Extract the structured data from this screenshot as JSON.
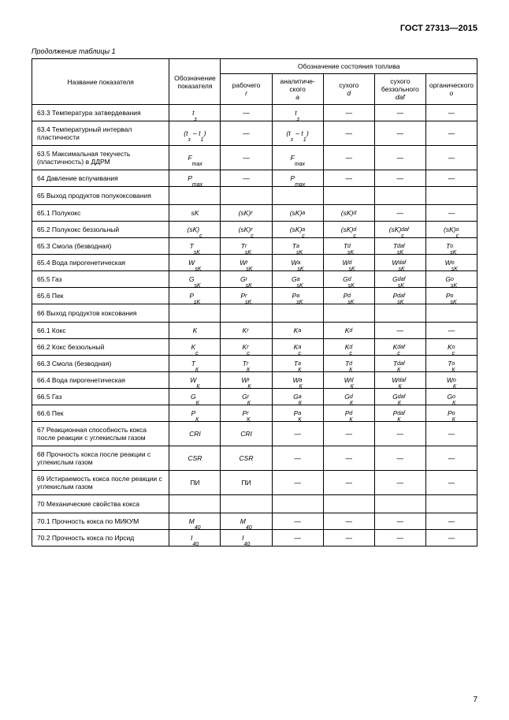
{
  "doc_title": "ГОСТ 27313—2015",
  "table_caption": "Продолжение таблицы 1",
  "page_number": "7",
  "header": {
    "col_name": "Название показателя",
    "col_symbol": "Обозначение показателя",
    "col_state_group": "Обозначение состояния топлива",
    "states": [
      {
        "label": "рабочего",
        "sub": "r"
      },
      {
        "label": "аналитиче-ского",
        "sub": "a"
      },
      {
        "label": "сухого",
        "sub": "d"
      },
      {
        "label": "сухого беззольного",
        "sub": "daf"
      },
      {
        "label": "органического",
        "sub": "o"
      }
    ]
  },
  "rows": [
    {
      "n": "63.3 Температура затвердевания",
      "s": {
        "base": "t",
        "sub": "з"
      },
      "v": [
        "—",
        {
          "base": "t",
          "sub": "з"
        },
        "—",
        "—",
        "—"
      ]
    },
    {
      "n": "63.4 Температурный интервал пластичности",
      "s": {
        "paren": true,
        "l": {
          "base": "t",
          "sub": "з"
        },
        "r": {
          "base": "t",
          "sub": "1"
        }
      },
      "v": [
        "—",
        {
          "paren": true,
          "l": {
            "base": "t",
            "sub": "з"
          },
          "r": {
            "base": "t",
            "sub": "1"
          }
        },
        "—",
        "—",
        "—"
      ]
    },
    {
      "n": "63.5 Максимальная текучесть (пластичность) в ДДРМ",
      "s": {
        "base": "F",
        "sub": "max"
      },
      "v": [
        "—",
        {
          "base": "F",
          "sub": "max"
        },
        "—",
        "—",
        "—"
      ]
    },
    {
      "n": "64 Давление вспучивания",
      "s": {
        "base": "P",
        "sub": "max"
      },
      "v": [
        "—",
        {
          "base": "P",
          "sub": "max"
        },
        "—",
        "—",
        "—"
      ]
    },
    {
      "n": "65 Выход продуктов полукоксования",
      "section": true
    },
    {
      "n": "65.1 Полукокс",
      "s": {
        "base": "sK"
      },
      "v": [
        {
          "base": "(sK)",
          "sup": "r"
        },
        {
          "base": "(sK)",
          "sup": "a"
        },
        {
          "base": "(sK)",
          "sup": "d"
        },
        "—",
        "—"
      ]
    },
    {
      "n": "65.2 Полукокс беззольный",
      "s": {
        "base": "(sK)",
        "sub": "с"
      },
      "v": [
        {
          "base": "(sK)",
          "sub": "с",
          "sup": "r"
        },
        {
          "base": "(sK)",
          "sub": "с",
          "sup": "a"
        },
        {
          "base": "(sK)",
          "sub": "с",
          "sup": "d"
        },
        {
          "base": "(sK)",
          "sub": "с",
          "sup": "daf"
        },
        {
          "base": "(sK)",
          "sub": "с",
          "sup": "o"
        }
      ]
    },
    {
      "n": "65.3 Смола (безводная)",
      "s": {
        "base": "T",
        "sub": "sK"
      },
      "v": [
        {
          "base": "T",
          "sub": "sK",
          "sup": "r"
        },
        {
          "base": "T",
          "sub": "sK",
          "sup": "a"
        },
        {
          "base": "T",
          "sub": "sK",
          "sup": "d"
        },
        {
          "base": "T",
          "sub": "sK",
          "sup": "daf"
        },
        {
          "base": "T",
          "sub": "sK",
          "sup": "o"
        }
      ]
    },
    {
      "n": "65.4 Вода пирогенетическая",
      "s": {
        "base": "W",
        "sub": "sK"
      },
      "v": [
        {
          "base": "W",
          "sub": "sK",
          "sup": "r"
        },
        {
          "base": "W",
          "sub": "sK",
          "sup": "a"
        },
        {
          "base": "W",
          "sub": "sK",
          "sup": "d"
        },
        {
          "base": "W",
          "sub": "sK",
          "sup": "daf"
        },
        {
          "base": "W",
          "sub": "sK",
          "sup": "o"
        }
      ]
    },
    {
      "n": "65.5 Газ",
      "s": {
        "base": "G",
        "sub": "sK"
      },
      "v": [
        {
          "base": "G",
          "sub": "sK",
          "sup": "r"
        },
        {
          "base": "G",
          "sub": "sK",
          "sup": "a"
        },
        {
          "base": "G",
          "sub": "sK",
          "sup": "d"
        },
        {
          "base": "G",
          "sub": "sK",
          "sup": "daf"
        },
        {
          "base": "G",
          "sub": "sK",
          "sup": "o"
        }
      ]
    },
    {
      "n": "65.6 Пек",
      "s": {
        "base": "P",
        "sub": "sK"
      },
      "v": [
        {
          "base": "P",
          "sub": "sK",
          "sup": "r"
        },
        {
          "base": "P",
          "sub": "sK",
          "sup": "a"
        },
        {
          "base": "P",
          "sub": "sK",
          "sup": "d"
        },
        {
          "base": "P",
          "sub": "sK",
          "sup": "daf"
        },
        {
          "base": "P",
          "sub": "sK",
          "sup": "o"
        }
      ]
    },
    {
      "n": "66 Выход продуктов коксования",
      "section": true
    },
    {
      "n": "66.1 Кокс",
      "s": {
        "base": "K"
      },
      "v": [
        {
          "base": "K",
          "sup": "r"
        },
        {
          "base": "K",
          "sup": "a"
        },
        {
          "base": "K",
          "sup": "d"
        },
        "—",
        "—"
      ]
    },
    {
      "n": "66.2 Кокс беззольный",
      "s": {
        "base": "K",
        "sub": "с"
      },
      "v": [
        {
          "base": "K",
          "sub": "с",
          "sup": "r"
        },
        {
          "base": "K",
          "sub": "с",
          "sup": "a"
        },
        {
          "base": "K",
          "sub": "с",
          "sup": "d"
        },
        {
          "base": "K",
          "sub": "с",
          "sup": "daf"
        },
        {
          "base": "K",
          "sub": "с",
          "sup": "o"
        }
      ]
    },
    {
      "n": "66.3 Смола (безводная)",
      "s": {
        "base": "T",
        "sub": "К"
      },
      "v": [
        {
          "base": "T",
          "sub": "К",
          "sup": "r"
        },
        {
          "base": "T",
          "sub": "К",
          "sup": "a"
        },
        {
          "base": "T",
          "sub": "К",
          "sup": "d"
        },
        {
          "base": "T",
          "sub": "К",
          "sup": "daf"
        },
        {
          "base": "T",
          "sub": "К",
          "sup": "o"
        }
      ]
    },
    {
      "n": "66.4 Вода пирогенетическая",
      "s": {
        "base": "W",
        "sub": "К"
      },
      "v": [
        {
          "base": "W",
          "sub": "К",
          "sup": "r"
        },
        {
          "base": "W",
          "sub": "К",
          "sup": "a"
        },
        {
          "base": "W",
          "sub": "К",
          "sup": "d"
        },
        {
          "base": "W",
          "sub": "К",
          "sup": "daf"
        },
        {
          "base": "W",
          "sub": "К",
          "sup": "o"
        }
      ]
    },
    {
      "n": "66.5 Газ",
      "s": {
        "base": "G",
        "sub": "К"
      },
      "v": [
        {
          "base": "G",
          "sub": "К",
          "sup": "r"
        },
        {
          "base": "G",
          "sub": "К",
          "sup": "a"
        },
        {
          "base": "G",
          "sub": "К",
          "sup": "d"
        },
        {
          "base": "G",
          "sub": "К",
          "sup": "daf"
        },
        {
          "base": "G",
          "sub": "К",
          "sup": "o"
        }
      ]
    },
    {
      "n": "66.6 Пек",
      "s": {
        "base": "P",
        "sub": "К"
      },
      "v": [
        {
          "base": "P",
          "sub": "К",
          "sup": "r"
        },
        {
          "base": "P",
          "sub": "К",
          "sup": "a"
        },
        {
          "base": "P",
          "sub": "К",
          "sup": "d"
        },
        {
          "base": "P",
          "sub": "К",
          "sup": "daf"
        },
        {
          "base": "P",
          "sub": "К",
          "sup": "o"
        }
      ]
    },
    {
      "n": "67 Реакционная способность кокса после реакции с углекислым газом",
      "s": {
        "base": "CRI"
      },
      "v": [
        {
          "base": "CRI"
        },
        "—",
        "—",
        "—",
        "—"
      ]
    },
    {
      "n": "68 Прочность кокса после реакции с углекислым газом",
      "s": {
        "base": "CSR"
      },
      "v": [
        {
          "base": "CSR"
        },
        "—",
        "—",
        "—",
        "—"
      ]
    },
    {
      "n": "69 Истираемость кокса после реакции с углекислым газом",
      "s": {
        "plain": "ПИ"
      },
      "v": [
        {
          "plain": "ПИ"
        },
        "—",
        "—",
        "—",
        "—"
      ]
    },
    {
      "n": "70 Механические свойства кокса",
      "section": true
    },
    {
      "n": "70.1 Прочность кокса по МИКУМ",
      "s": {
        "base": "M",
        "sub": "40"
      },
      "v": [
        {
          "base": "M",
          "sub": "40"
        },
        "—",
        "—",
        "—",
        "—"
      ]
    },
    {
      "n": "70.2 Прочность кокса по Ирсид",
      "s": {
        "base": "I",
        "sub": "40"
      },
      "v": [
        {
          "base": "I",
          "sub": "40"
        },
        "—",
        "—",
        "—",
        "—"
      ]
    }
  ]
}
